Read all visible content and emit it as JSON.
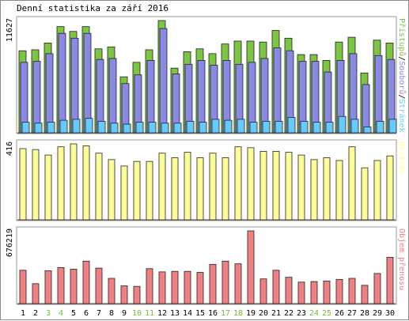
{
  "title": "Denní statistika za září 2016",
  "colors": {
    "hits": "#7dc443",
    "files": "#8a8ae6",
    "pages": "#66ccff",
    "visits": "#ffff99",
    "bytes": "#f08080",
    "weekend_label": "#6fbf2f",
    "weekday_label": "#000000"
  },
  "chart_data": [
    {
      "type": "bar",
      "name": "hits-files-pages",
      "ylabel_max": "11627",
      "ymax": 11627,
      "legend": [
        {
          "text": "Přístupů",
          "color": "#7dc443"
        },
        {
          "text": "/",
          "color": "#000000"
        },
        {
          "text": "Souborů",
          "color": "#8a8ae6"
        },
        {
          "text": "/",
          "color": "#000000"
        },
        {
          "text": "Stránek",
          "color": "#66ccff"
        }
      ],
      "categories": [
        "1",
        "2",
        "3",
        "4",
        "5",
        "6",
        "7",
        "8",
        "9",
        "10",
        "11",
        "12",
        "13",
        "14",
        "15",
        "16",
        "17",
        "18",
        "19",
        "20",
        "21",
        "22",
        "23",
        "24",
        "25",
        "26",
        "27",
        "28",
        "29",
        "30"
      ],
      "series": [
        {
          "name": "Přístupů",
          "values": [
            8500,
            8600,
            9300,
            11000,
            10500,
            11000,
            8700,
            8900,
            5800,
            7300,
            8600,
            11627,
            6700,
            8400,
            8700,
            8200,
            9200,
            9500,
            9500,
            9400,
            10600,
            9800,
            8100,
            8100,
            7500,
            9400,
            9900,
            6200,
            9600,
            9300
          ]
        },
        {
          "name": "Souborů",
          "values": [
            7300,
            7400,
            8200,
            10300,
            9800,
            10300,
            7600,
            7700,
            5100,
            6000,
            7500,
            10800,
            6100,
            7100,
            7500,
            7000,
            7500,
            7100,
            7300,
            7700,
            8800,
            8500,
            7400,
            7400,
            6300,
            7500,
            8200,
            5000,
            8000,
            7600
          ]
        },
        {
          "name": "Stránek",
          "values": [
            1100,
            1000,
            1100,
            1300,
            1400,
            1500,
            1200,
            1000,
            900,
            1100,
            1100,
            1000,
            1000,
            1200,
            1100,
            1400,
            1300,
            1400,
            1100,
            1200,
            1200,
            1600,
            1200,
            1100,
            1100,
            1700,
            1400,
            600,
            1200,
            1400
          ]
        }
      ]
    },
    {
      "type": "bar",
      "name": "visits",
      "ylabel_max": "416",
      "ymax": 416,
      "legend": [
        {
          "text": "Návštěv",
          "color": "#ffff99"
        }
      ],
      "categories": [
        "1",
        "2",
        "3",
        "4",
        "5",
        "6",
        "7",
        "8",
        "9",
        "10",
        "11",
        "12",
        "13",
        "14",
        "15",
        "16",
        "17",
        "18",
        "19",
        "20",
        "21",
        "22",
        "23",
        "24",
        "25",
        "26",
        "27",
        "28",
        "29",
        "30"
      ],
      "series": [
        {
          "name": "Návštěv",
          "values": [
            390,
            385,
            355,
            400,
            416,
            405,
            365,
            330,
            295,
            320,
            320,
            365,
            340,
            370,
            340,
            365,
            340,
            400,
            395,
            375,
            375,
            370,
            355,
            330,
            340,
            325,
            400,
            285,
            325,
            350
          ]
        }
      ]
    },
    {
      "type": "bar",
      "name": "bytes",
      "ylabel_max": "676219",
      "ymax": 676219,
      "legend": [
        {
          "text": "Objem přenosu",
          "color": "#f08080"
        }
      ],
      "categories": [
        "1",
        "2",
        "3",
        "4",
        "5",
        "6",
        "7",
        "8",
        "9",
        "10",
        "11",
        "12",
        "13",
        "14",
        "15",
        "16",
        "17",
        "18",
        "19",
        "20",
        "21",
        "22",
        "23",
        "24",
        "25",
        "26",
        "27",
        "28",
        "29",
        "30"
      ],
      "series": [
        {
          "name": "Objem přenosu",
          "values": [
            310000,
            185000,
            305000,
            335000,
            320000,
            395000,
            330000,
            235000,
            165000,
            160000,
            325000,
            295000,
            300000,
            300000,
            290000,
            365000,
            395000,
            370000,
            676219,
            230000,
            310000,
            245000,
            200000,
            205000,
            210000,
            225000,
            235000,
            170000,
            280000,
            430000
          ]
        }
      ]
    }
  ],
  "xaxis": {
    "labels": [
      "1",
      "2",
      "3",
      "4",
      "5",
      "6",
      "7",
      "8",
      "9",
      "10",
      "11",
      "12",
      "13",
      "14",
      "15",
      "16",
      "17",
      "18",
      "19",
      "20",
      "21",
      "22",
      "23",
      "24",
      "25",
      "26",
      "27",
      "28",
      "29",
      "30"
    ],
    "weekend": [
      false,
      false,
      true,
      true,
      false,
      false,
      false,
      false,
      false,
      true,
      true,
      false,
      false,
      false,
      false,
      false,
      true,
      true,
      false,
      false,
      false,
      false,
      false,
      true,
      true,
      false,
      false,
      false,
      false,
      false
    ]
  }
}
